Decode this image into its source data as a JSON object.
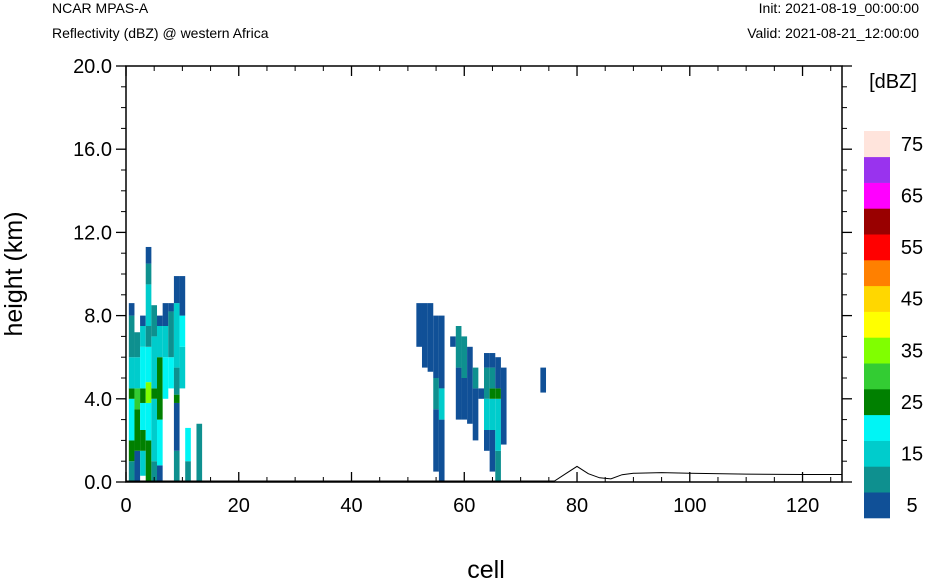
{
  "header": {
    "model": "NCAR MPAS-A",
    "field": "Reflectivity (dBZ) @ western Africa",
    "init": "Init: 2021-08-19_00:00:00",
    "valid": "Valid: 2021-08-21_12:00:00"
  },
  "chart_data": {
    "type": "heatmap",
    "xlabel": "cell",
    "ylabel": "height (km)",
    "xlim": [
      0,
      127
    ],
    "ylim": [
      0,
      20
    ],
    "x_ticks": [
      0,
      20,
      40,
      60,
      80,
      100,
      120
    ],
    "y_ticks": [
      "0.0",
      "4.0",
      "8.0",
      "12.0",
      "16.0",
      "20.0"
    ],
    "colorbar": {
      "unit": "[dBZ]",
      "levels": [
        5,
        10,
        15,
        20,
        25,
        30,
        35,
        40,
        45,
        50,
        55,
        60,
        65,
        70,
        75
      ],
      "colors": [
        "#105097",
        "#0e908f",
        "#00cccc",
        "#00f5f5",
        "#008000",
        "#33cc33",
        "#80ff00",
        "#ffff00",
        "#ffd700",
        "#ff8000",
        "#ff0000",
        "#990000",
        "#ff00ff",
        "#9933ee",
        "#ffe4dc"
      ],
      "tick_labels": [
        "5",
        "15",
        "25",
        "35",
        "45",
        "55",
        "65",
        "75"
      ]
    },
    "terrain": [
      [
        0,
        0.05
      ],
      [
        76,
        0.05
      ],
      [
        78,
        0.4
      ],
      [
        80,
        0.75
      ],
      [
        82,
        0.4
      ],
      [
        84,
        0.2
      ],
      [
        86,
        0.15
      ],
      [
        88,
        0.35
      ],
      [
        90,
        0.42
      ],
      [
        95,
        0.45
      ],
      [
        100,
        0.42
      ],
      [
        110,
        0.38
      ],
      [
        120,
        0.36
      ],
      [
        127,
        0.36
      ]
    ],
    "reflectivity": [
      {
        "x": 1,
        "z0": 0,
        "z1": 1,
        "dbz": 10
      },
      {
        "x": 1,
        "z0": 1,
        "z1": 2,
        "dbz": 25
      },
      {
        "x": 1,
        "z0": 2,
        "z1": 4,
        "dbz": 20
      },
      {
        "x": 1,
        "z0": 4,
        "z1": 4.5,
        "dbz": 25
      },
      {
        "x": 1,
        "z0": 4.5,
        "z1": 6,
        "dbz": 15
      },
      {
        "x": 1,
        "z0": 6,
        "z1": 8,
        "dbz": 10
      },
      {
        "x": 1,
        "z0": 8,
        "z1": 8.6,
        "dbz": 5
      },
      {
        "x": 2,
        "z0": 0,
        "z1": 1.5,
        "dbz": 5
      },
      {
        "x": 2,
        "z0": 1.5,
        "z1": 3.5,
        "dbz": 25
      },
      {
        "x": 2,
        "z0": 3.5,
        "z1": 4.5,
        "dbz": 30
      },
      {
        "x": 2,
        "z0": 4.5,
        "z1": 6,
        "dbz": 15
      },
      {
        "x": 2,
        "z0": 6,
        "z1": 7.2,
        "dbz": 10
      },
      {
        "x": 3,
        "z0": 0.3,
        "z1": 1.5,
        "dbz": 15
      },
      {
        "x": 3,
        "z0": 1.5,
        "z1": 2.5,
        "dbz": 25
      },
      {
        "x": 3,
        "z0": 2.5,
        "z1": 3.8,
        "dbz": 20
      },
      {
        "x": 3,
        "z0": 3.8,
        "z1": 4.5,
        "dbz": 25
      },
      {
        "x": 3,
        "z0": 4.5,
        "z1": 6.5,
        "dbz": 20
      },
      {
        "x": 3,
        "z0": 6.5,
        "z1": 7.5,
        "dbz": 15
      },
      {
        "x": 3,
        "z0": 7.5,
        "z1": 8.0,
        "dbz": 5
      },
      {
        "x": 4,
        "z0": 0,
        "z1": 2,
        "dbz": 25
      },
      {
        "x": 4,
        "z0": 2,
        "z1": 3.8,
        "dbz": 20
      },
      {
        "x": 4,
        "z0": 3.8,
        "z1": 4.8,
        "dbz": 35
      },
      {
        "x": 4,
        "z0": 4.8,
        "z1": 6.5,
        "dbz": 20
      },
      {
        "x": 4,
        "z0": 6.5,
        "z1": 7.5,
        "dbz": 10
      },
      {
        "x": 4,
        "z0": 7.5,
        "z1": 9.5,
        "dbz": 15
      },
      {
        "x": 4,
        "z0": 9.5,
        "z1": 10.5,
        "dbz": 10
      },
      {
        "x": 4,
        "z0": 10.5,
        "z1": 11.3,
        "dbz": 5
      },
      {
        "x": 5,
        "z0": 0,
        "z1": 1,
        "dbz": 10
      },
      {
        "x": 5,
        "z0": 1,
        "z1": 4,
        "dbz": 15
      },
      {
        "x": 5,
        "z0": 4,
        "z1": 4.5,
        "dbz": 25
      },
      {
        "x": 5,
        "z0": 4.5,
        "z1": 7,
        "dbz": 15
      },
      {
        "x": 5,
        "z0": 7,
        "z1": 8.5,
        "dbz": 10
      },
      {
        "x": 6,
        "z0": 0,
        "z1": 0.8,
        "dbz": 5
      },
      {
        "x": 6,
        "z0": 0.8,
        "z1": 3,
        "dbz": 20
      },
      {
        "x": 6,
        "z0": 3,
        "z1": 6,
        "dbz": 25
      },
      {
        "x": 6,
        "z0": 6,
        "z1": 7.5,
        "dbz": 15
      },
      {
        "x": 6,
        "z0": 7.5,
        "z1": 8.0,
        "dbz": 5
      },
      {
        "x": 7,
        "z0": 4,
        "z1": 6,
        "dbz": 20
      },
      {
        "x": 7,
        "z0": 6,
        "z1": 7.5,
        "dbz": 15
      },
      {
        "x": 7,
        "z0": 7.5,
        "z1": 8.6,
        "dbz": 5
      },
      {
        "x": 8,
        "z0": 4.5,
        "z1": 6,
        "dbz": 20
      },
      {
        "x": 8,
        "z0": 6,
        "z1": 8.2,
        "dbz": 10
      },
      {
        "x": 8,
        "z0": 8.2,
        "z1": 8.6,
        "dbz": 5
      },
      {
        "x": 9,
        "z0": 0,
        "z1": 1.5,
        "dbz": 10
      },
      {
        "x": 9,
        "z0": 1.5,
        "z1": 3.8,
        "dbz": 5
      },
      {
        "x": 9,
        "z0": 3.8,
        "z1": 4.2,
        "dbz": 25
      },
      {
        "x": 9,
        "z0": 4.2,
        "z1": 5.5,
        "dbz": 10
      },
      {
        "x": 9,
        "z0": 5.5,
        "z1": 8.6,
        "dbz": 15
      },
      {
        "x": 9,
        "z0": 8.6,
        "z1": 9.9,
        "dbz": 5
      },
      {
        "x": 10,
        "z0": 4.5,
        "z1": 6.5,
        "dbz": 15
      },
      {
        "x": 10,
        "z0": 6.5,
        "z1": 8,
        "dbz": 20
      },
      {
        "x": 10,
        "z0": 8,
        "z1": 9.9,
        "dbz": 5
      },
      {
        "x": 11,
        "z0": 0,
        "z1": 1,
        "dbz": 10
      },
      {
        "x": 11,
        "z0": 1,
        "z1": 2.6,
        "dbz": 20
      },
      {
        "x": 13,
        "z0": 0,
        "z1": 2.8,
        "dbz": 10
      },
      {
        "x": 52,
        "z0": 6.5,
        "z1": 8.6,
        "dbz": 5
      },
      {
        "x": 53,
        "z0": 5.5,
        "z1": 8.6,
        "dbz": 5
      },
      {
        "x": 54,
        "z0": 5.3,
        "z1": 8.6,
        "dbz": 5
      },
      {
        "x": 55,
        "z0": 0.5,
        "z1": 3.5,
        "dbz": 5
      },
      {
        "x": 55,
        "z0": 3.5,
        "z1": 5,
        "dbz": 10
      },
      {
        "x": 55,
        "z0": 5,
        "z1": 8.0,
        "dbz": 5
      },
      {
        "x": 56,
        "z0": 0,
        "z1": 3,
        "dbz": 5
      },
      {
        "x": 56,
        "z0": 3,
        "z1": 4.5,
        "dbz": 15
      },
      {
        "x": 56,
        "z0": 4.5,
        "z1": 8.0,
        "dbz": 5
      },
      {
        "x": 58,
        "z0": 6.5,
        "z1": 7.0,
        "dbz": 5
      },
      {
        "x": 59,
        "z0": 3,
        "z1": 5.5,
        "dbz": 5
      },
      {
        "x": 59,
        "z0": 5.5,
        "z1": 7.5,
        "dbz": 10
      },
      {
        "x": 60,
        "z0": 3,
        "z1": 5,
        "dbz": 5
      },
      {
        "x": 60,
        "z0": 5,
        "z1": 7.0,
        "dbz": 10
      },
      {
        "x": 61,
        "z0": 2.8,
        "z1": 6.5,
        "dbz": 5
      },
      {
        "x": 62,
        "z0": 2,
        "z1": 4.5,
        "dbz": 5
      },
      {
        "x": 62,
        "z0": 4.5,
        "z1": 5.5,
        "dbz": 10
      },
      {
        "x": 63,
        "z0": 4,
        "z1": 4.5,
        "dbz": 5
      },
      {
        "x": 64,
        "z0": 1.5,
        "z1": 2.5,
        "dbz": 5
      },
      {
        "x": 64,
        "z0": 2.5,
        "z1": 4,
        "dbz": 15
      },
      {
        "x": 64,
        "z0": 4,
        "z1": 5.5,
        "dbz": 10
      },
      {
        "x": 64,
        "z0": 5.5,
        "z1": 6.2,
        "dbz": 5
      },
      {
        "x": 65,
        "z0": 0.5,
        "z1": 2.5,
        "dbz": 5
      },
      {
        "x": 65,
        "z0": 2.5,
        "z1": 4,
        "dbz": 15
      },
      {
        "x": 65,
        "z0": 4,
        "z1": 4.5,
        "dbz": 25
      },
      {
        "x": 65,
        "z0": 4.5,
        "z1": 5.5,
        "dbz": 10
      },
      {
        "x": 65,
        "z0": 5.5,
        "z1": 6.2,
        "dbz": 5
      },
      {
        "x": 66,
        "z0": 0,
        "z1": 1.5,
        "dbz": 10
      },
      {
        "x": 66,
        "z0": 1.5,
        "z1": 4,
        "dbz": 15
      },
      {
        "x": 66,
        "z0": 4,
        "z1": 4.5,
        "dbz": 25
      },
      {
        "x": 66,
        "z0": 4.5,
        "z1": 6.0,
        "dbz": 5
      },
      {
        "x": 67,
        "z0": 1.8,
        "z1": 5.5,
        "dbz": 5
      },
      {
        "x": 74,
        "z0": 4.3,
        "z1": 5.5,
        "dbz": 5
      }
    ]
  }
}
